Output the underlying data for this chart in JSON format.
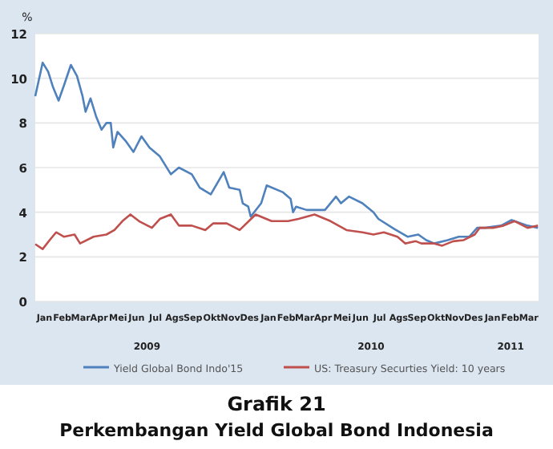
{
  "chart_data": {
    "type": "line",
    "title": "Grafik 21",
    "subtitle": "Perkembangan Yield Global Bond Indonesia",
    "ylabel": "%",
    "xlim": [
      "2009-01-01",
      "2011-04-01"
    ],
    "ylim": [
      0,
      12
    ],
    "yticks": [
      0,
      2,
      4,
      6,
      8,
      10,
      12
    ],
    "xticks": [
      {
        "value": "2009-01-16",
        "label": "Jan"
      },
      {
        "value": "2009-02-14",
        "label": "Feb"
      },
      {
        "value": "2009-03-16",
        "label": "Mar"
      },
      {
        "value": "2009-04-15",
        "label": "Apr"
      },
      {
        "value": "2009-05-16",
        "label": "Mei"
      },
      {
        "value": "2009-06-15",
        "label": "Jun"
      },
      {
        "value": "2009-07-16",
        "label": "Jul"
      },
      {
        "value": "2009-08-16",
        "label": "Ags"
      },
      {
        "value": "2009-09-15",
        "label": "Sep"
      },
      {
        "value": "2009-10-16",
        "label": "Okt"
      },
      {
        "value": "2009-11-15",
        "label": "Nov"
      },
      {
        "value": "2009-12-16",
        "label": "Des"
      },
      {
        "value": "2010-01-16",
        "label": "Jan"
      },
      {
        "value": "2010-02-14",
        "label": "Feb"
      },
      {
        "value": "2010-03-16",
        "label": "Mar"
      },
      {
        "value": "2010-04-15",
        "label": "Apr"
      },
      {
        "value": "2010-05-16",
        "label": "Mei"
      },
      {
        "value": "2010-06-15",
        "label": "Jun"
      },
      {
        "value": "2010-07-16",
        "label": "Jul"
      },
      {
        "value": "2010-08-16",
        "label": "Ags"
      },
      {
        "value": "2010-09-15",
        "label": "Sep"
      },
      {
        "value": "2010-10-16",
        "label": "Okt"
      },
      {
        "value": "2010-11-15",
        "label": "Nov"
      },
      {
        "value": "2010-12-16",
        "label": "Des"
      },
      {
        "value": "2011-01-16",
        "label": "Jan"
      },
      {
        "value": "2011-02-14",
        "label": "Feb"
      },
      {
        "value": "2011-03-16",
        "label": "Mar"
      }
    ],
    "annotations": [
      "2009",
      "2010",
      "2011"
    ],
    "grid": "y",
    "legend": "bottom",
    "marker": "none",
    "line_style": "solid",
    "series": [
      {
        "name": "Yield Global Bond Indo'15",
        "color": "#4f81bd",
        "x": [
          "2009-01-01",
          "2009-01-13",
          "2009-01-22",
          "2009-01-30",
          "2009-02-08",
          "2009-02-17",
          "2009-02-28",
          "2009-03-10",
          "2009-03-19",
          "2009-03-24",
          "2009-04-01",
          "2009-04-10",
          "2009-04-19",
          "2009-04-27",
          "2009-05-04",
          "2009-05-08",
          "2009-05-15",
          "2009-05-28",
          "2009-06-10",
          "2009-06-23",
          "2009-07-06",
          "2009-07-23",
          "2009-08-10",
          "2009-08-23",
          "2009-09-13",
          "2009-09-26",
          "2009-10-14",
          "2009-11-04",
          "2009-11-13",
          "2009-11-30",
          "2009-12-05",
          "2009-12-14",
          "2009-12-18",
          "2010-01-04",
          "2010-01-13",
          "2010-02-08",
          "2010-02-21",
          "2010-02-25",
          "2010-03-02",
          "2010-03-19",
          "2010-04-18",
          "2010-05-06",
          "2010-05-14",
          "2010-05-27",
          "2010-06-18",
          "2010-07-06",
          "2010-07-14",
          "2010-08-09",
          "2010-08-31",
          "2010-09-17",
          "2010-09-30",
          "2010-10-13",
          "2010-11-04",
          "2010-11-22",
          "2010-12-09",
          "2010-12-22",
          "2011-01-04",
          "2011-01-30",
          "2011-02-16",
          "2011-03-14",
          "2011-03-31"
        ],
        "values": [
          9.2,
          10.7,
          10.3,
          9.6,
          9.0,
          9.7,
          10.6,
          10.1,
          9.2,
          8.5,
          9.1,
          8.3,
          7.7,
          8.0,
          8.0,
          6.9,
          7.6,
          7.2,
          6.7,
          7.4,
          6.9,
          6.5,
          5.7,
          6.0,
          5.7,
          5.1,
          4.8,
          5.8,
          5.1,
          5.0,
          4.4,
          4.25,
          3.8,
          4.4,
          5.2,
          4.9,
          4.6,
          4.0,
          4.25,
          4.1,
          4.1,
          4.7,
          4.4,
          4.7,
          4.4,
          4.0,
          3.7,
          3.25,
          2.9,
          3.0,
          2.75,
          2.6,
          2.75,
          2.9,
          2.9,
          3.3,
          3.3,
          3.4,
          3.65,
          3.4,
          3.3
        ]
      },
      {
        "name": "US: Treasury Securties Yield: 10 years",
        "color": "#c0504d",
        "x": [
          "2009-01-01",
          "2009-01-13",
          "2009-01-26",
          "2009-02-04",
          "2009-02-17",
          "2009-03-06",
          "2009-03-15",
          "2009-04-06",
          "2009-04-27",
          "2009-05-10",
          "2009-05-23",
          "2009-06-05",
          "2009-06-19",
          "2009-07-10",
          "2009-07-23",
          "2009-08-10",
          "2009-08-23",
          "2009-09-13",
          "2009-10-05",
          "2009-10-18",
          "2009-11-09",
          "2009-11-30",
          "2009-12-26",
          "2010-01-21",
          "2010-02-17",
          "2010-03-06",
          "2010-04-01",
          "2010-04-27",
          "2010-05-23",
          "2010-06-18",
          "2010-07-06",
          "2010-07-23",
          "2010-08-14",
          "2010-08-27",
          "2010-09-13",
          "2010-09-22",
          "2010-10-13",
          "2010-10-26",
          "2010-11-13",
          "2010-11-30",
          "2010-12-18",
          "2010-12-26",
          "2011-01-17",
          "2011-02-03",
          "2011-02-21",
          "2011-03-14",
          "2011-03-31"
        ],
        "values": [
          2.57,
          2.35,
          2.8,
          3.1,
          2.9,
          3.0,
          2.6,
          2.9,
          3.0,
          3.2,
          3.6,
          3.9,
          3.6,
          3.3,
          3.7,
          3.9,
          3.4,
          3.4,
          3.2,
          3.5,
          3.5,
          3.2,
          3.9,
          3.6,
          3.6,
          3.7,
          3.9,
          3.6,
          3.2,
          3.1,
          3.0,
          3.1,
          2.9,
          2.6,
          2.7,
          2.6,
          2.6,
          2.5,
          2.7,
          2.75,
          3.0,
          3.3,
          3.3,
          3.4,
          3.6,
          3.3,
          3.4
        ]
      }
    ]
  }
}
